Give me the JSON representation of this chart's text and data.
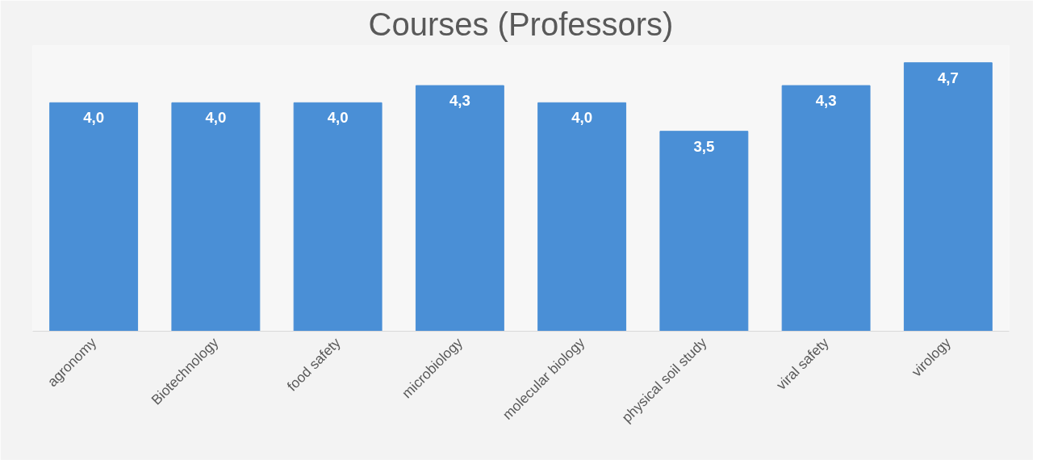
{
  "chart_data": {
    "type": "bar",
    "title": "Courses (Professors)",
    "categories": [
      "agronomy",
      "Biotechnology",
      "food safety",
      "microbiology",
      "molecular biology",
      "physical soil study",
      "viral safety",
      "virology"
    ],
    "values": [
      4.0,
      4.0,
      4.0,
      4.3,
      4.0,
      3.5,
      4.3,
      4.7
    ],
    "value_labels": [
      "4,0",
      "4,0",
      "4,0",
      "4,3",
      "4,0",
      "3,5",
      "4,3",
      "4,7"
    ],
    "color": "#4a8fd6",
    "ylim": [
      0,
      5
    ],
    "grid": false
  }
}
